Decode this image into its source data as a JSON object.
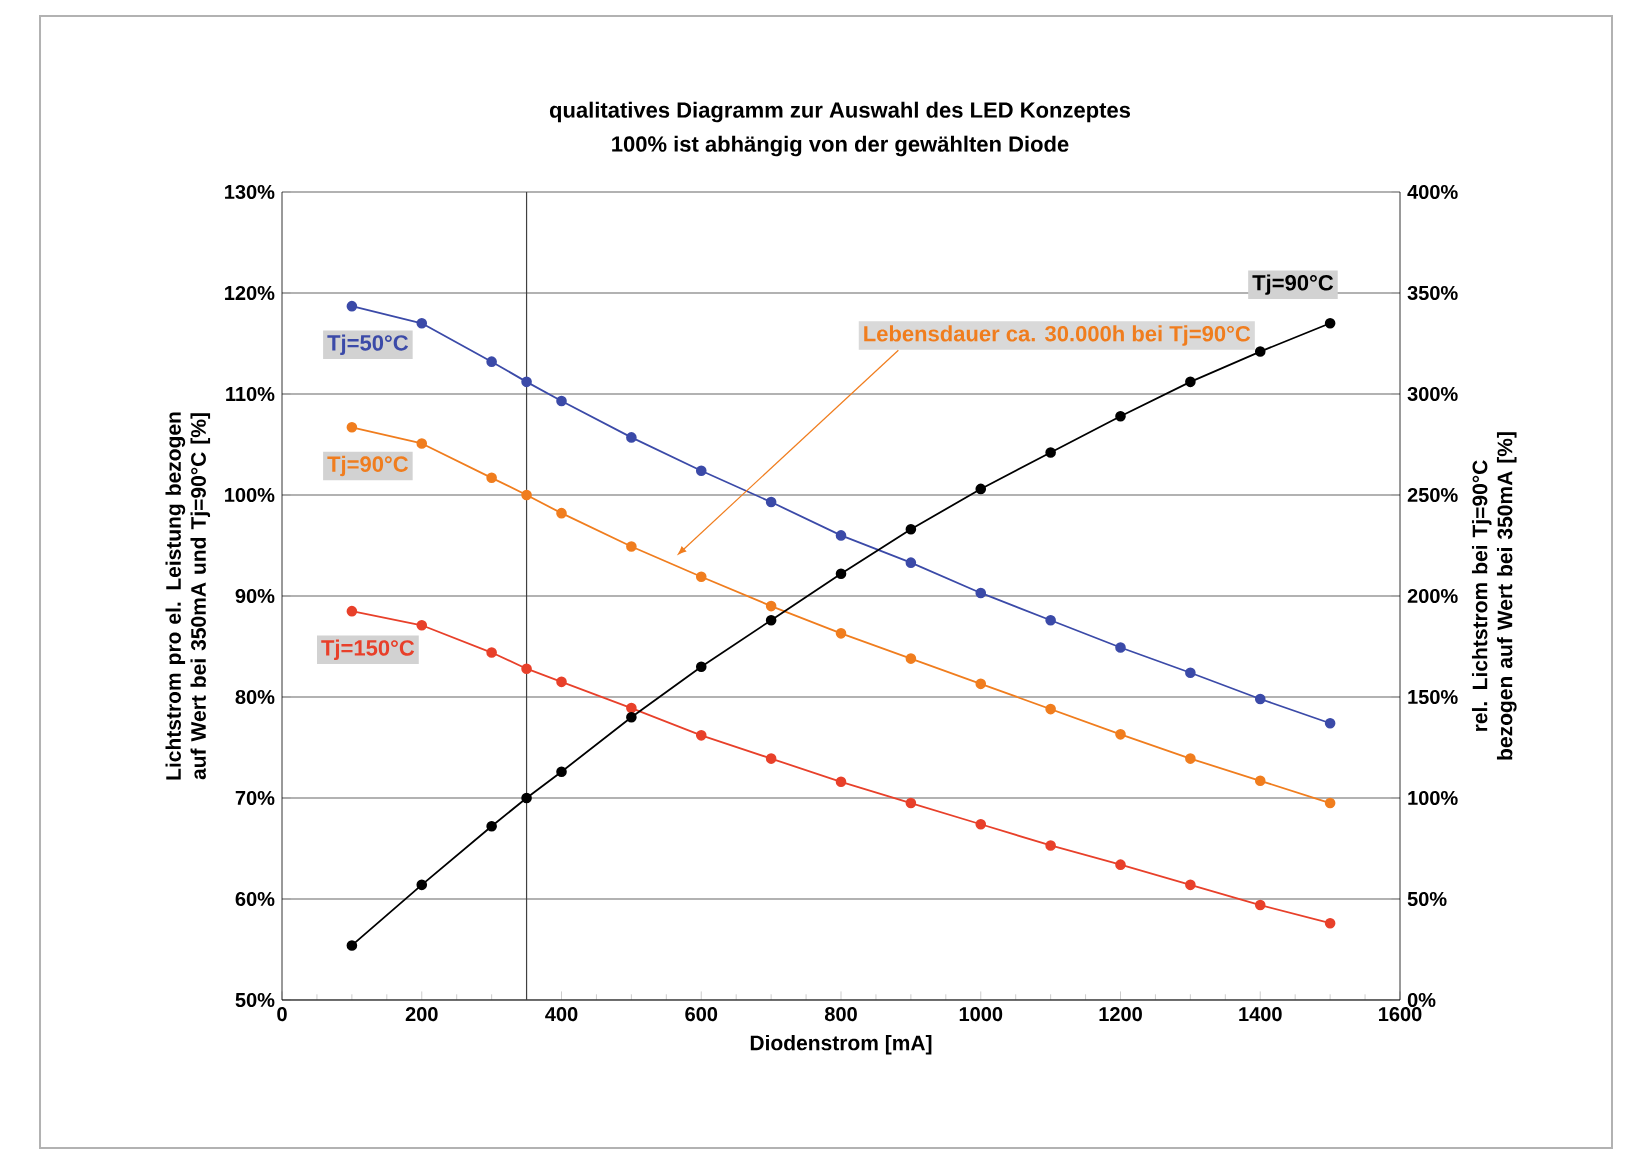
{
  "chart_data": {
    "type": "line",
    "title": "qualitatives Diagramm zur Auswahl des LED Konzeptes",
    "subtitle": "100% ist abhängig von der gewählten Diode",
    "xlabel": "Diodenstrom [mA]",
    "ylabel": "Lichtstrom pro el. Leistung bezogen auf Wert bei 350mA und Tj=90°C [%]",
    "y2label": "rel. Lichtstrom bei Tj=90°C bezogen auf Wert bei 350mA [%]",
    "x": [
      100,
      200,
      300,
      350,
      400,
      500,
      600,
      700,
      800,
      900,
      1000,
      1100,
      1200,
      1300,
      1400,
      1500
    ],
    "series": [
      {
        "name": "Tj=50°C",
        "color": "#3b4aa8",
        "values": [
          118.7,
          117.0,
          113.2,
          111.2,
          109.3,
          105.7,
          102.4,
          99.3,
          96.0,
          93.3,
          90.3,
          87.6,
          84.9,
          82.4,
          79.8,
          77.4
        ]
      },
      {
        "name": "Tj=90°C",
        "color": "#f07d1e",
        "values": [
          106.7,
          105.1,
          101.7,
          100.0,
          98.2,
          94.9,
          91.9,
          89.0,
          86.3,
          83.8,
          81.3,
          78.8,
          76.3,
          73.9,
          71.7,
          69.5
        ]
      },
      {
        "name": "Tj=150°C",
        "color": "#e8402a",
        "values": [
          88.5,
          87.1,
          84.4,
          82.8,
          81.5,
          78.9,
          76.2,
          73.9,
          71.6,
          69.5,
          67.4,
          65.3,
          63.4,
          61.4,
          59.4,
          57.6
        ]
      },
      {
        "name": "Tj=90°C",
        "color": "#000000",
        "axis": "y2",
        "values": [
          27,
          57,
          86,
          100,
          113,
          140,
          165,
          188,
          211,
          233,
          253,
          271,
          289,
          306,
          321,
          335
        ]
      }
    ],
    "xlim": [
      0,
      1600
    ],
    "xticks": [
      0,
      200,
      400,
      600,
      800,
      1000,
      1200,
      1400,
      1600
    ],
    "ylim": [
      50,
      130
    ],
    "yticks": [
      {
        "value": 50,
        "label": "50%"
      },
      {
        "value": 60,
        "label": "60%"
      },
      {
        "value": 70,
        "label": "70%"
      },
      {
        "value": 80,
        "label": "80%"
      },
      {
        "value": 90,
        "label": "90%"
      },
      {
        "value": 100,
        "label": "100%"
      },
      {
        "value": 110,
        "label": "110%"
      },
      {
        "value": 120,
        "label": "120%"
      },
      {
        "value": 130,
        "label": "130%"
      }
    ],
    "y2lim": [
      0,
      400
    ],
    "y2ticks": [
      {
        "value": 0,
        "label": "0%"
      },
      {
        "value": 50,
        "label": "50%"
      },
      {
        "value": 100,
        "label": "100%"
      },
      {
        "value": 150,
        "label": "150%"
      },
      {
        "value": 200,
        "label": "200%"
      },
      {
        "value": 250,
        "label": "250%"
      },
      {
        "value": 300,
        "label": "300%"
      },
      {
        "value": 350,
        "label": "350%"
      },
      {
        "value": 400,
        "label": "400%"
      }
    ],
    "ref_lines": [
      {
        "axis": "x",
        "value": 350,
        "color": "#404040"
      }
    ],
    "annotations": [
      {
        "text": "Lebensdauer ca. 30.000h bei Tj=90°C",
        "x": 565,
        "y": 94.0
      }
    ],
    "grid": "y",
    "marker": "circle",
    "line_style": "solid"
  }
}
